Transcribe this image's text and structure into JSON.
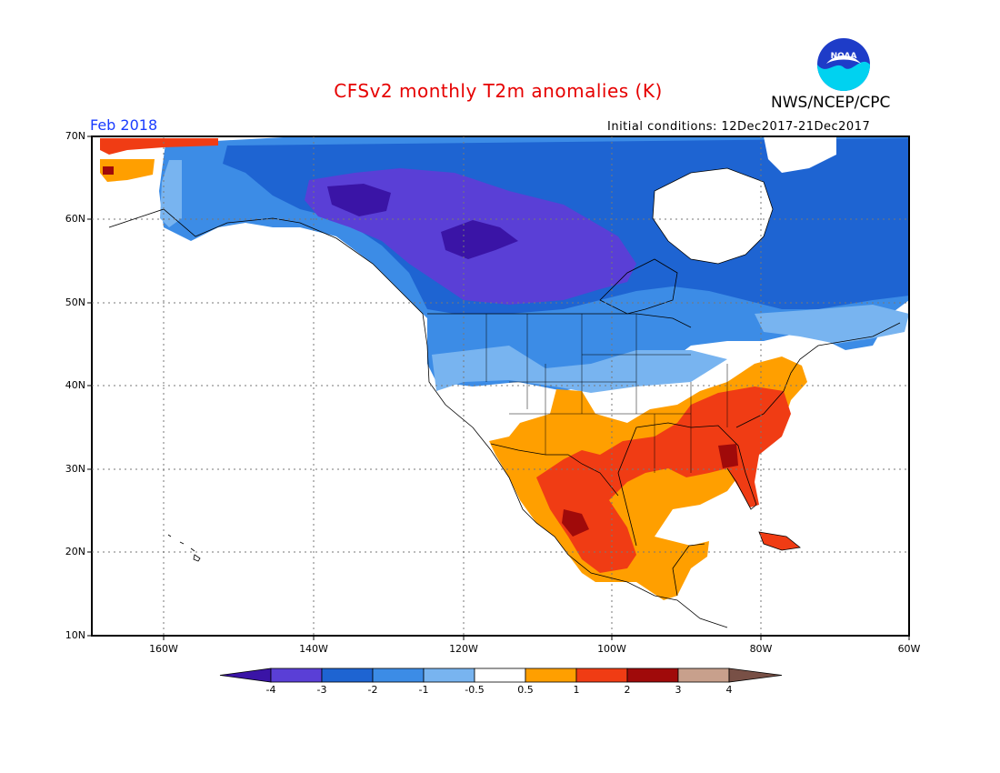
{
  "title": "CFSv2 monthly T2m anomalies (K)",
  "agency": "NWS/NCEP/CPC",
  "logo_text": "NOAA",
  "valid_month": "Feb 2018",
  "initial_conditions": "Initial conditions: 12Dec2017-21Dec2017",
  "latitude_labels": [
    "70N",
    "60N",
    "50N",
    "40N",
    "30N",
    "20N",
    "10N"
  ],
  "longitude_labels": [
    "160W",
    "140W",
    "120W",
    "100W",
    "80W",
    "60W"
  ],
  "colorbar": {
    "labels": [
      "-4",
      "-3",
      "-2",
      "-1",
      "-0.5",
      "0.5",
      "1",
      "2",
      "3",
      "4"
    ],
    "colors": [
      "#3a14a6",
      "#5a3fd6",
      "#1e64d2",
      "#3c8ce6",
      "#78b4f0",
      "#ffffff",
      "#ff9f00",
      "#f03c14",
      "#a00a0a",
      "#c8a08c",
      "#785046"
    ]
  },
  "map_colors": {
    "le_minus4": "#3a14a6",
    "minus3": "#5a3fd6",
    "minus2": "#1e64d2",
    "minus1": "#3c8ce6",
    "minus05": "#78b4f0",
    "plus05": "#ff9f00",
    "plus1": "#f03c14",
    "plus2": "#a00a0a"
  }
}
